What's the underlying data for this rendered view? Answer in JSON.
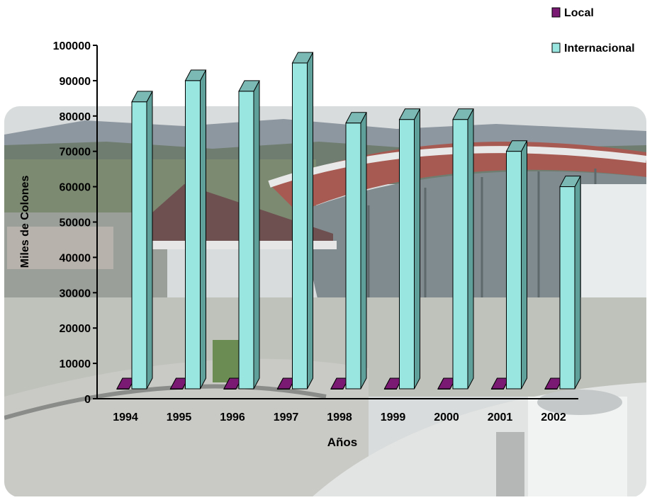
{
  "chart_data": {
    "type": "bar",
    "title": "",
    "xlabel": "Años",
    "ylabel": "Miles de Colones",
    "ylim": [
      0,
      100000
    ],
    "yticks": [
      0,
      10000,
      20000,
      30000,
      40000,
      50000,
      60000,
      70000,
      80000,
      90000,
      100000
    ],
    "categories": [
      "1994",
      "1995",
      "1996",
      "1997",
      "1998",
      "1999",
      "2000",
      "2001",
      "2002"
    ],
    "series": [
      {
        "name": "Local",
        "values": [
          0,
          0,
          0,
          0,
          0,
          0,
          0,
          0,
          0
        ],
        "color": "#7a1a72"
      },
      {
        "name": "Internacional",
        "values": [
          84000,
          90000,
          87000,
          95000,
          78000,
          79000,
          79000,
          70000,
          60000
        ],
        "color": "#99e6e0"
      }
    ],
    "legend": "top-right",
    "three_d": true,
    "background": "photograph of airport terminal"
  }
}
